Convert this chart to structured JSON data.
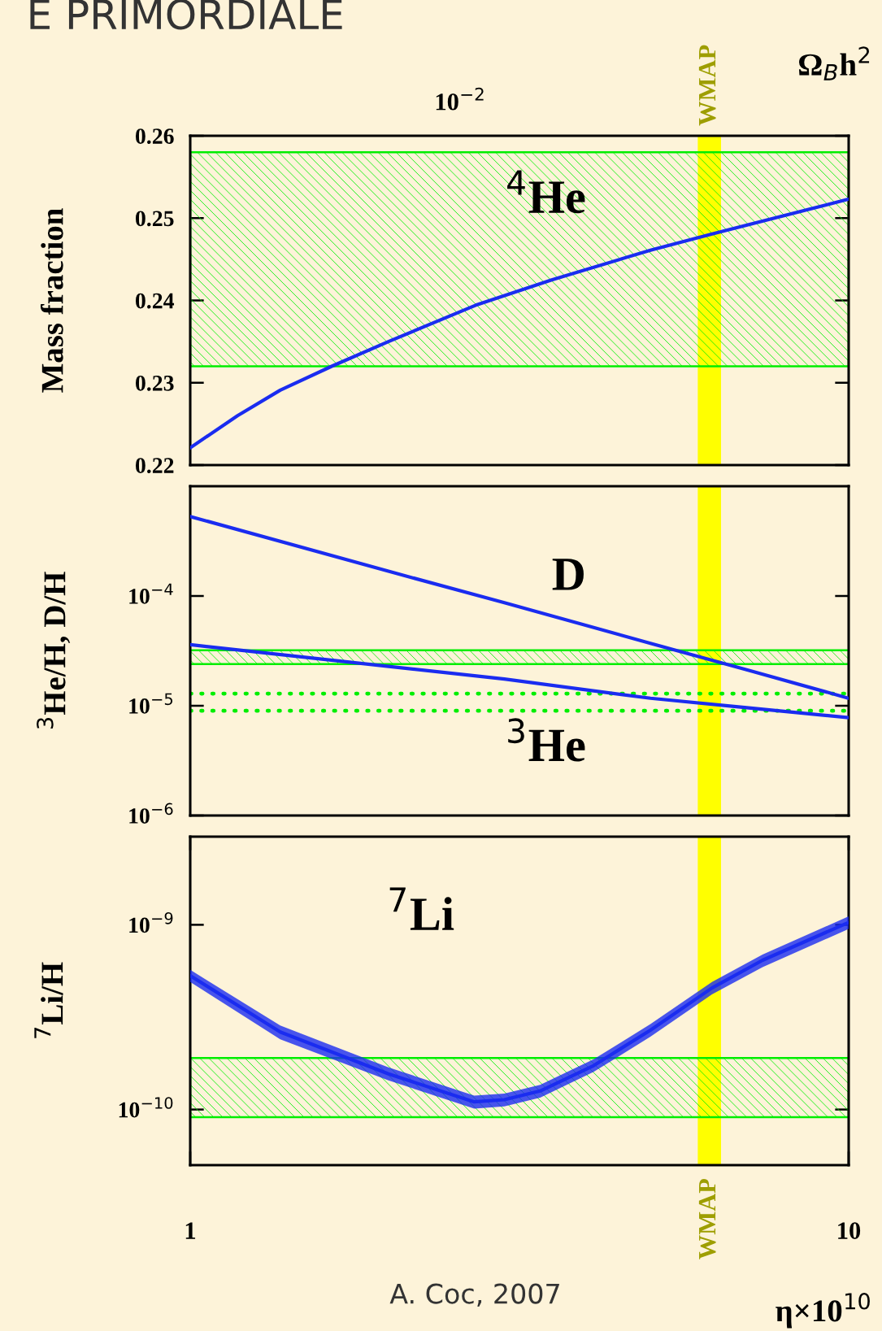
{
  "chart_data": [
    {
      "type": "line",
      "title": "E PRIMORDIALE",
      "ylabel": "Mass fraction",
      "x2label": "Ω$_{B}$h$^{2}$",
      "log": "x",
      "tick_labels": "y",
      "xlim": [
        1,
        10
      ],
      "ylim": [
        0.22,
        0.26
      ],
      "yticks": [
        0.22,
        0.23,
        0.24,
        0.25,
        0.26
      ],
      "series": [
        {
          "color": "#1a2cf0",
          "x": [
            1,
            1.18,
            1.37,
            1.64,
            2,
            2.71,
            3.54,
            5,
            6.22,
            10
          ],
          "values": [
            0.2221,
            0.226,
            0.2291,
            0.232,
            0.235,
            0.2394,
            0.2425,
            0.2461,
            0.2481,
            0.2523
          ]
        }
      ],
      "bands": [
        {
          "axis": "y",
          "from": 0.232,
          "to": 0.258,
          "color": "#00ee00"
        },
        {
          "axis": "x",
          "from": 5.9,
          "to": 6.4,
          "color": "#ffff00",
          "label": "WMAP"
        }
      ],
      "annotations": [
        "$^{4}$He",
        "10$^{−2}$"
      ]
    },
    {
      "type": "line",
      "ylabel": "$^{3}$He/H, D/H",
      "log": "xy",
      "tick_labels": "y",
      "xlim": [
        1,
        10
      ],
      "ylim": [
        1e-06,
        0.001
      ],
      "yticks": [
        {
          "value": 1e-06,
          "label": "10$^{−6}$"
        },
        {
          "value": 1e-05,
          "label": "10$^{−5}$"
        },
        {
          "value": 0.0001,
          "label": "10$^{−4}$"
        }
      ],
      "series": [
        {
          "color": "#1a2cf0",
          "x": [
            1,
            2,
            3,
            5,
            7,
            10
          ],
          "values": [
            0.00053,
            0.000168,
            8.7e-05,
            3.7e-05,
            2.13e-05,
            1.17e-05
          ]
        },
        {
          "color": "#1a2cf0",
          "x": [
            1,
            3,
            5,
            7,
            10
          ],
          "values": [
            3.6e-05,
            1.75e-05,
            1.17e-05,
            9.6e-06,
            7.8e-06
          ]
        }
      ],
      "bands": [
        {
          "axis": "y",
          "from": 2.4e-05,
          "to": 3.2e-05,
          "color": "#00ee00"
        },
        {
          "axis": "x",
          "from": 5.9,
          "to": 6.4,
          "color": "#ffff00"
        }
      ],
      "ref_lines": [
        {
          "axis": "y",
          "value": 1.29e-05,
          "color": "#00ee00",
          "line_style": "dotted"
        },
        {
          "axis": "y",
          "value": 9e-06,
          "color": "#00ee00",
          "line_style": "dotted"
        }
      ],
      "annotations": [
        "D",
        "$^{3}$He"
      ]
    },
    {
      "type": "line",
      "ylabel": "$^{7}$Li/H",
      "xlabel": "η×10$^{10}$",
      "log": "xy",
      "xlim": [
        1,
        10
      ],
      "xticks": [
        1,
        10
      ],
      "ylim": [
        5e-11,
        3e-09
      ],
      "yticks": [
        {
          "value": 1e-10,
          "label": "10$^{−10}$"
        },
        {
          "value": 1e-09,
          "label": "10$^{−9}$"
        }
      ],
      "series": [
        {
          "color": "#1a2cf0",
          "x": [
            1,
            1.37,
            2,
            2.7,
            3,
            3.4,
            4.1,
            5,
            6.2,
            7.4,
            10
          ],
          "values": [
            5.3e-10,
            2.63e-10,
            1.56e-10,
            1.1e-10,
            1.13e-10,
            1.26e-10,
            1.73e-10,
            2.69e-10,
            4.55e-10,
            6.43e-10,
            1.03e-09
          ],
          "lower": [
            4.9e-10,
            2.4e-10,
            1.44e-10,
            1.01e-10,
            1.04e-10,
            1.16e-10,
            1.6e-10,
            2.48e-10,
            4.2e-10,
            5.9e-10,
            9.5e-10
          ],
          "upper": [
            5.7e-10,
            2.85e-10,
            1.69e-10,
            1.19e-10,
            1.22e-10,
            1.36e-10,
            1.87e-10,
            2.9e-10,
            4.9e-10,
            6.9e-10,
            1.11e-09
          ]
        }
      ],
      "bands": [
        {
          "axis": "y",
          "from": 9.1e-11,
          "to": 1.9e-10,
          "color": "#00ee00"
        },
        {
          "axis": "x",
          "from": 5.9,
          "to": 6.4,
          "color": "#ffff00",
          "label": "WMAP"
        }
      ],
      "annotations": [
        "$^{7}$Li",
        "A. Coc, 2007"
      ]
    }
  ]
}
